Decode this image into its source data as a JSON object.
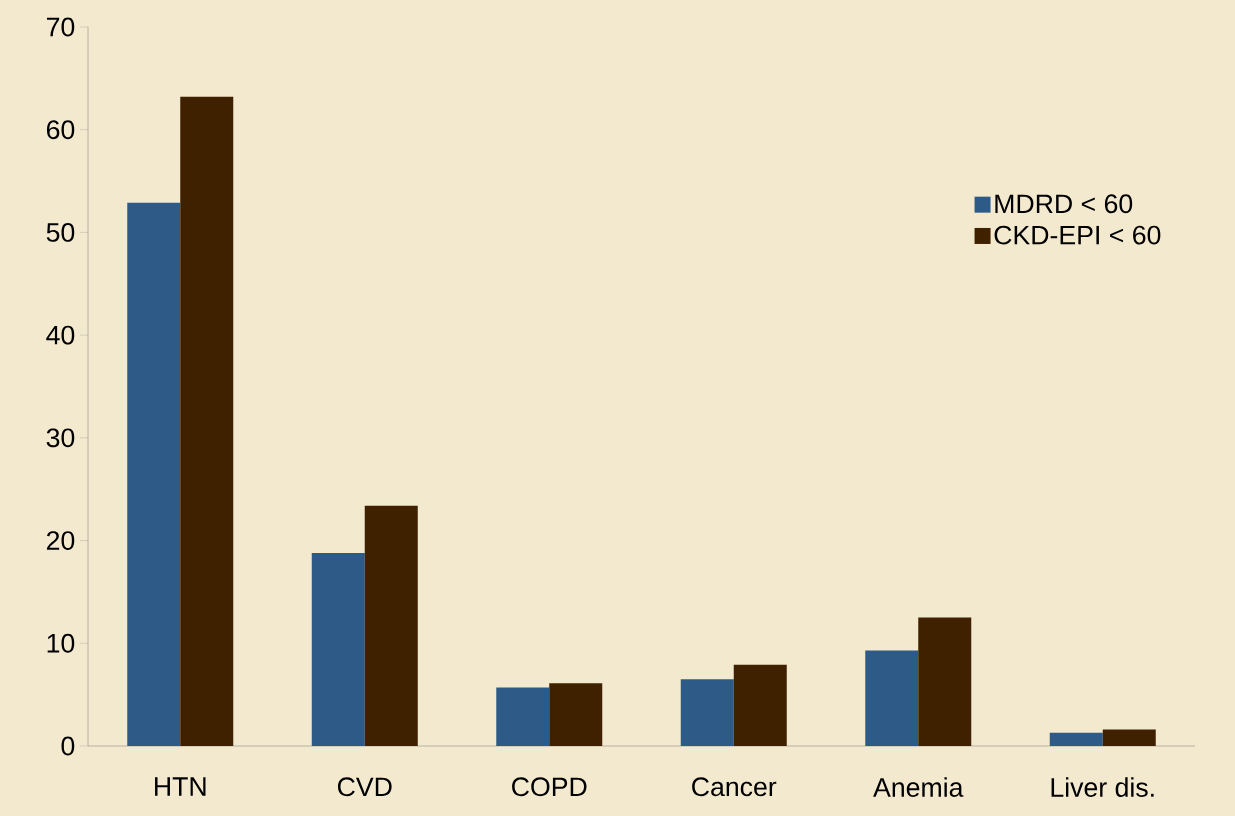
{
  "chart_data": {
    "type": "bar",
    "categories": [
      "HTN",
      "CVD",
      "COPD",
      "Cancer",
      "Anemia",
      "Liver dis."
    ],
    "series": [
      {
        "name": "MDRD < 60",
        "color": "#2e5a87",
        "values": [
          52.9,
          18.8,
          5.7,
          6.5,
          9.3,
          1.3
        ]
      },
      {
        "name": "CKD-EPI < 60",
        "color": "#3f2100",
        "values": [
          63.2,
          23.4,
          6.1,
          7.9,
          12.5,
          1.6
        ]
      }
    ],
    "ylim": [
      0,
      70
    ],
    "yticks": [
      0,
      10,
      20,
      30,
      40,
      50,
      60,
      70
    ],
    "grid": false,
    "legend": "right"
  }
}
